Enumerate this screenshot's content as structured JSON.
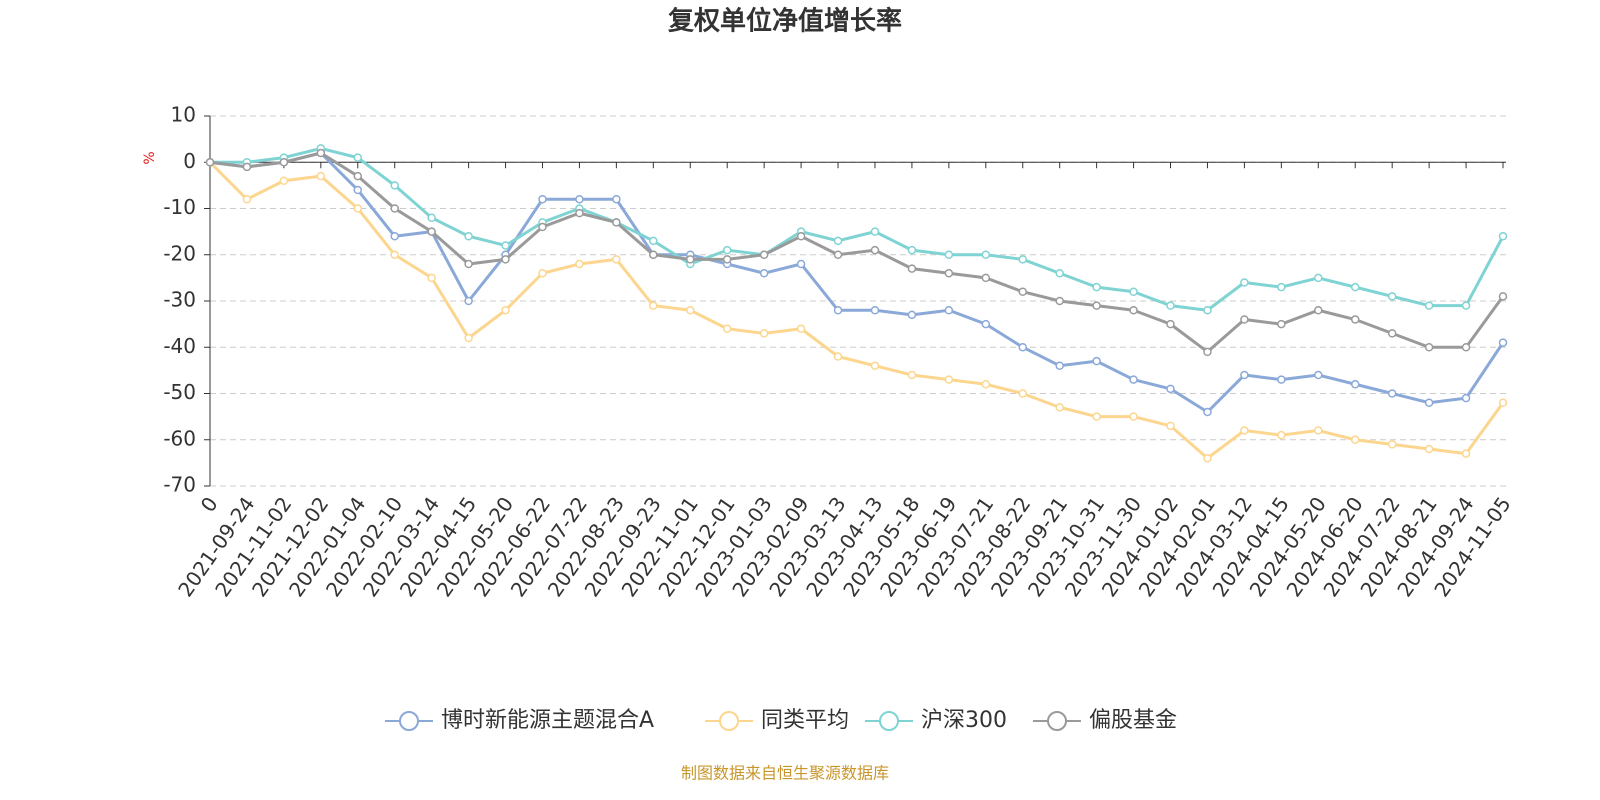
{
  "chart_data": {
    "type": "line",
    "title": "复权单位净值增长率",
    "y_label": "%",
    "source": "制图数据来自恒生聚源数据库",
    "categories": [
      "0",
      "2021-09-24",
      "2021-11-02",
      "2021-12-02",
      "2022-01-04",
      "2022-02-10",
      "2022-03-14",
      "2022-04-15",
      "2022-05-20",
      "2022-06-22",
      "2022-07-22",
      "2022-08-23",
      "2022-09-23",
      "2022-11-01",
      "2022-12-01",
      "2023-01-03",
      "2023-02-09",
      "2023-03-13",
      "2023-04-13",
      "2023-05-18",
      "2023-06-19",
      "2023-07-21",
      "2023-08-22",
      "2023-09-21",
      "2023-10-31",
      "2023-11-30",
      "2024-01-02",
      "2024-02-01",
      "2024-03-12",
      "2024-04-15",
      "2024-05-20",
      "2024-06-20",
      "2024-07-22",
      "2024-08-21",
      "2024-09-24",
      "2024-11-05"
    ],
    "series": [
      {
        "name": "博时新能源主题混合A",
        "color": "#8aa8d8",
        "values": [
          0,
          -1,
          0,
          2,
          -6,
          -16,
          -15,
          -30,
          -20,
          -8,
          -8,
          -8,
          -20,
          -20,
          -22,
          -24,
          -22,
          -32,
          -32,
          -33,
          -32,
          -35,
          -40,
          -44,
          -43,
          -47,
          -49,
          -54,
          -46,
          -47,
          -46,
          -48,
          -50,
          -52,
          -51,
          -39
        ]
      },
      {
        "name": "同类平均",
        "color": "#fcd68e",
        "values": [
          0,
          -8,
          -4,
          -3,
          -10,
          -20,
          -25,
          -38,
          -32,
          -24,
          -22,
          -21,
          -31,
          -32,
          -36,
          -37,
          -36,
          -42,
          -44,
          -46,
          -47,
          -48,
          -50,
          -53,
          -55,
          -55,
          -57,
          -64,
          -58,
          -59,
          -58,
          -60,
          -61,
          -62,
          -63,
          -52
        ]
      },
      {
        "name": "沪深300",
        "color": "#7fd3d3",
        "values": [
          0,
          0,
          1,
          3,
          1,
          -5,
          -12,
          -16,
          -18,
          -13,
          -10,
          -13,
          -17,
          -22,
          -19,
          -20,
          -15,
          -17,
          -15,
          -19,
          -20,
          -20,
          -21,
          -24,
          -27,
          -28,
          -31,
          -32,
          -26,
          -27,
          -25,
          -27,
          -29,
          -31,
          -31,
          -16
        ]
      },
      {
        "name": "偏股基金",
        "color": "#9a9a9a",
        "values": [
          0,
          -1,
          0,
          2,
          -3,
          -10,
          -15,
          -22,
          -21,
          -14,
          -11,
          -13,
          -20,
          -21,
          -21,
          -20,
          -16,
          -20,
          -19,
          -23,
          -24,
          -25,
          -28,
          -30,
          -31,
          -32,
          -35,
          -41,
          -34,
          -35,
          -32,
          -34,
          -37,
          -40,
          -40,
          -29
        ]
      }
    ],
    "ylim": [
      -70,
      10
    ],
    "yticks": [
      10,
      0,
      -10,
      -20,
      -30,
      -40,
      -50,
      -60,
      -70
    ],
    "grid": true
  }
}
